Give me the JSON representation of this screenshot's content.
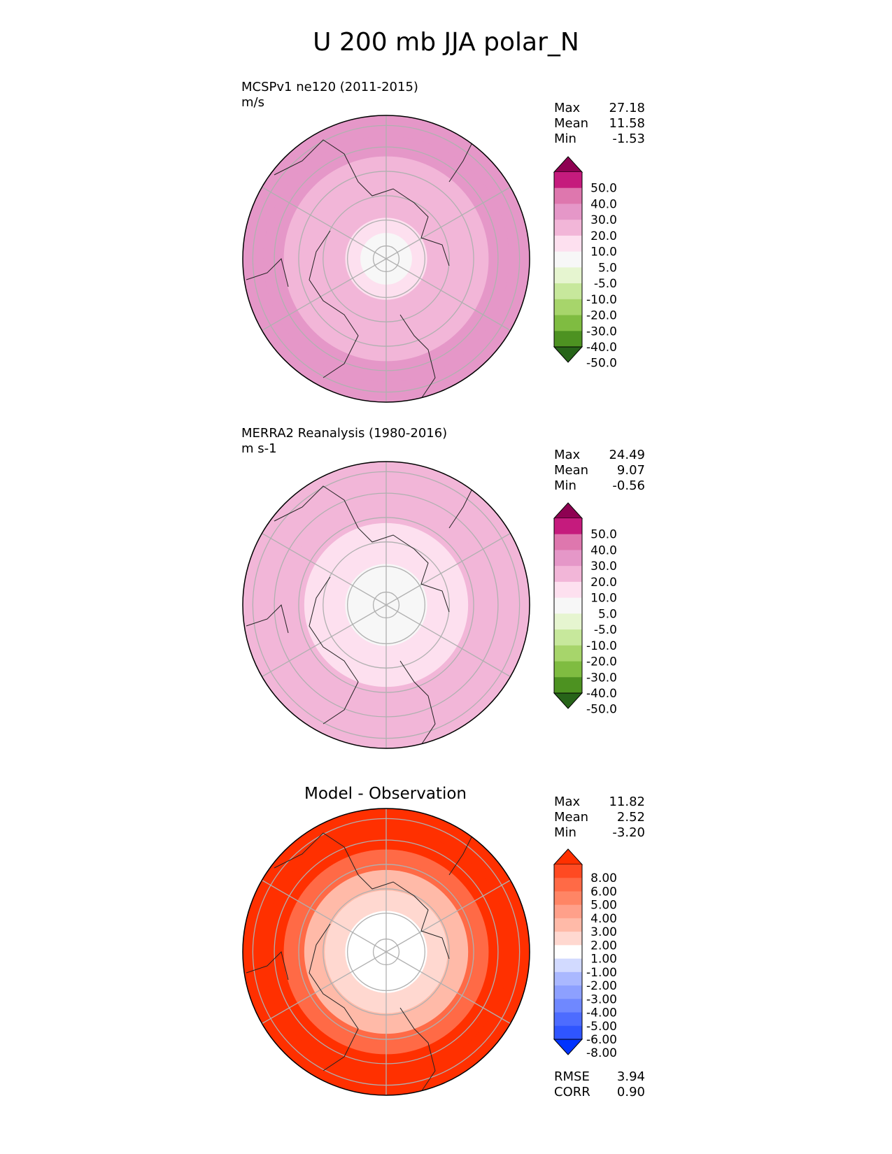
{
  "title": "U 200 mb JJA polar_N",
  "colors": {
    "grid": "#b0b0b0",
    "coast": "#222222",
    "wind_levels": [
      "#276419",
      "#4d9221",
      "#7fbc41",
      "#a7d56b",
      "#c7e89c",
      "#e6f5d0",
      "#f7f7f7",
      "#fde0ef",
      "#f2b6d8",
      "#e597c8",
      "#de77ae",
      "#c51b7d",
      "#8e0152"
    ],
    "diff_levels": [
      "#0033ff",
      "#2f55ff",
      "#4d6cff",
      "#6f88ff",
      "#8da0ff",
      "#aab8ff",
      "#d2daff",
      "#ffffff",
      "#ffd8d0",
      "#ffbaa8",
      "#ffa08a",
      "#ff8565",
      "#ff6a46",
      "#ff4a22",
      "#ff3000"
    ]
  },
  "chart_data": [
    {
      "type": "heatmap",
      "projection": "north-polar-stereographic",
      "title": "MCSPv1 ne120 (2011-2015)",
      "units": "m/s",
      "stats": {
        "labels": [
          "Max",
          "Mean",
          "Min"
        ],
        "values": [
          "27.18",
          "11.58",
          "-1.53"
        ]
      },
      "colorbar": {
        "ticks": [
          "50.0",
          "40.0",
          "30.0",
          "20.0",
          "10.0",
          "5.0",
          "-5.0",
          "-10.0",
          "-20.0",
          "-30.0",
          "-40.0",
          "-50.0"
        ],
        "levels": [
          -50,
          -40,
          -30,
          -20,
          -10,
          -5,
          5,
          10,
          20,
          30,
          40,
          50
        ]
      },
      "field": {
        "pole_value": 2,
        "ring_values": [
          2,
          6,
          10,
          14,
          18,
          20,
          22
        ]
      }
    },
    {
      "type": "heatmap",
      "projection": "north-polar-stereographic",
      "title": "MERRA2 Reanalysis (1980-2016)",
      "units": "m s-1",
      "stats": {
        "labels": [
          "Max",
          "Mean",
          "Min"
        ],
        "values": [
          "24.49",
          "9.07",
          "-0.56"
        ]
      },
      "colorbar": {
        "ticks": [
          "50.0",
          "40.0",
          "30.0",
          "20.0",
          "10.0",
          "5.0",
          "-5.0",
          "-10.0",
          "-20.0",
          "-30.0",
          "-40.0",
          "-50.0"
        ],
        "levels": [
          -50,
          -40,
          -30,
          -20,
          -10,
          -5,
          5,
          10,
          20,
          30,
          40,
          50
        ]
      },
      "field": {
        "pole_value": 1,
        "ring_values": [
          1,
          4,
          7,
          9,
          11,
          13,
          16
        ]
      }
    },
    {
      "type": "heatmap",
      "projection": "north-polar-stereographic",
      "title": "Model - Observation",
      "stats": {
        "labels": [
          "Max",
          "Mean",
          "Min"
        ],
        "values": [
          "11.82",
          "2.52",
          "-3.20"
        ]
      },
      "colorbar": {
        "ticks": [
          "8.00",
          "6.00",
          "5.00",
          "4.00",
          "3.00",
          "2.00",
          "1.00",
          "-1.00",
          "-2.00",
          "-3.00",
          "-4.00",
          "-5.00",
          "-6.00",
          "-8.00"
        ],
        "levels": [
          -8,
          -6,
          -5,
          -4,
          -3,
          -2,
          -1,
          1,
          2,
          3,
          4,
          5,
          6,
          8
        ]
      },
      "metrics": {
        "labels": [
          "RMSE",
          "CORR"
        ],
        "values": [
          "3.94",
          "0.90"
        ]
      },
      "field": {
        "pole_value": 0,
        "ring_values": [
          -1,
          0,
          1,
          2,
          5,
          8,
          9
        ]
      }
    }
  ]
}
